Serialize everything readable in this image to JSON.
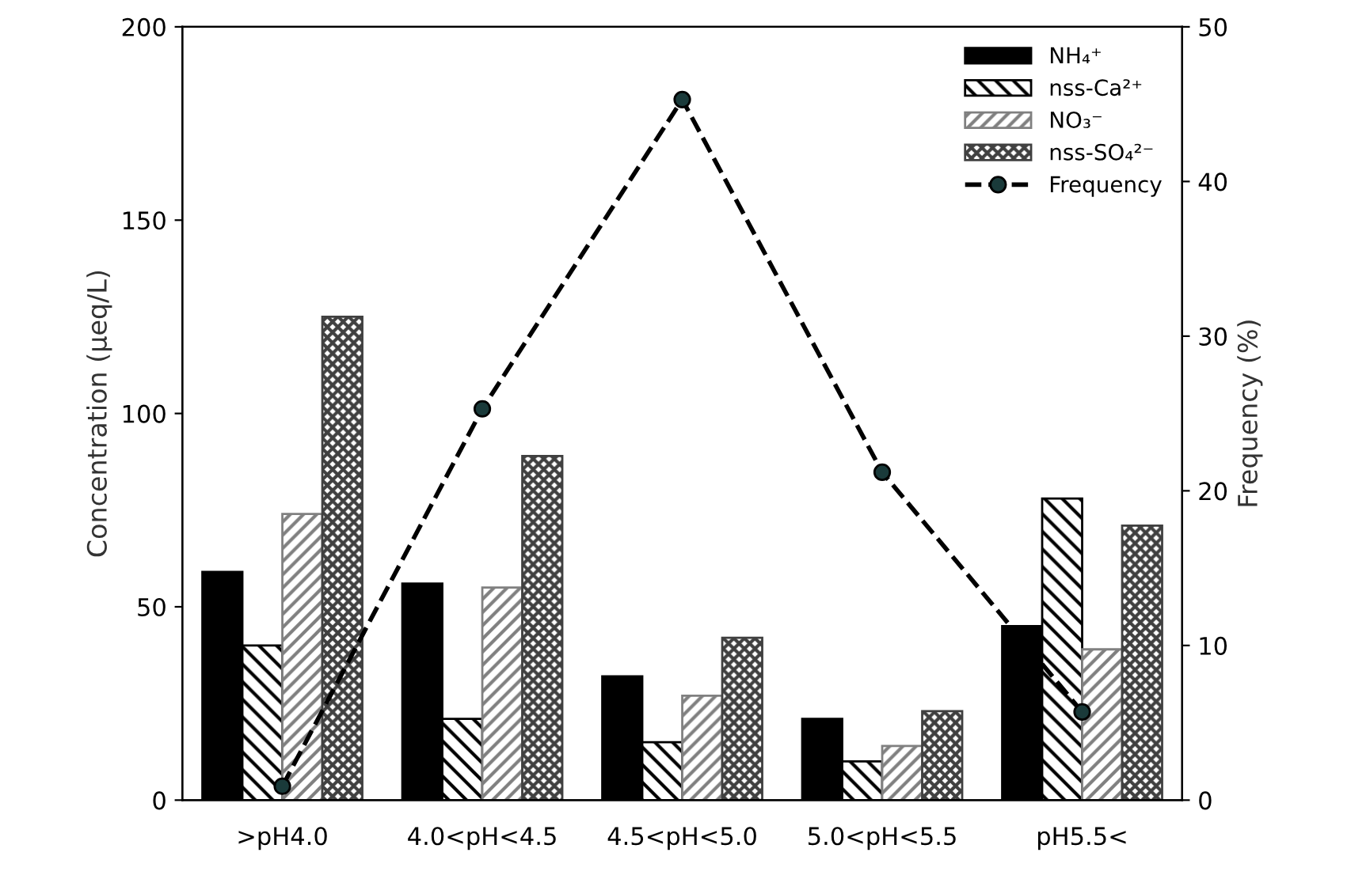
{
  "chart_data": {
    "type": "bar",
    "ylabel": "Concentration (μeq/L)",
    "y2label": "Frequency (%)",
    "categories": [
      ">pH4.0",
      "4.0<pH<4.5",
      "4.5<pH<5.0",
      "5.0<pH<5.5",
      "pH5.5<"
    ],
    "series": [
      {
        "name": "NH₄⁺",
        "color": "#000000",
        "values": [
          59,
          56,
          32,
          21,
          45
        ]
      },
      {
        "name": "nss-Ca²⁺",
        "color": "#000000",
        "values": [
          40,
          21,
          15,
          10,
          78
        ]
      },
      {
        "name": "NO₃⁻",
        "color": "#808080",
        "values": [
          74,
          55,
          27,
          14,
          39
        ]
      },
      {
        "name": "nss-SO₄²⁻",
        "color": "#404040",
        "values": [
          125,
          89,
          42,
          23,
          71
        ]
      },
      {
        "name": "Frequency",
        "type": "line",
        "axis": "y2",
        "color": "#000000",
        "marker": "circle",
        "line_style": "dashed",
        "values": [
          0.9,
          25.3,
          45.3,
          21.2,
          5.7
        ]
      }
    ],
    "ylim": [
      0,
      200
    ],
    "yticks": [
      0,
      50,
      100,
      150,
      200
    ],
    "y2lim": [
      0,
      50
    ],
    "y2ticks": [
      0,
      10,
      20,
      30,
      40,
      50
    ],
    "grid": false,
    "legend": "top right"
  }
}
